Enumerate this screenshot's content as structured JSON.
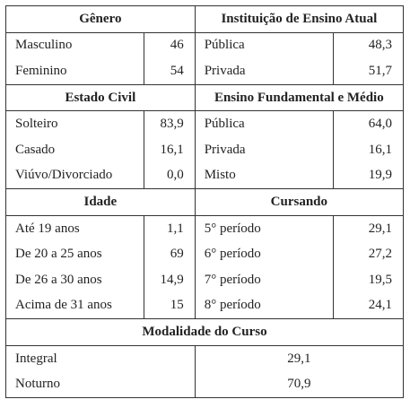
{
  "sections": {
    "genero": {
      "title": "Gênero",
      "rows": [
        {
          "label": "Masculino",
          "value": "46"
        },
        {
          "label": "Feminino",
          "value": "54"
        }
      ]
    },
    "instituicao": {
      "title": "Instituição de Ensino Atual",
      "rows": [
        {
          "label": "Pública",
          "value": "48,3"
        },
        {
          "label": "Privada",
          "value": "51,7"
        }
      ]
    },
    "estado_civil": {
      "title": "Estado Civil",
      "rows": [
        {
          "label": "Solteiro",
          "value": "83,9"
        },
        {
          "label": "Casado",
          "value": "16,1"
        },
        {
          "label": "Viúvo/Divorciado",
          "value": "0,0"
        }
      ]
    },
    "ensino_fundamental_medio": {
      "title": "Ensino Fundamental e Médio",
      "rows": [
        {
          "label": "Pública",
          "value": "64,0"
        },
        {
          "label": "Privada",
          "value": "16,1"
        },
        {
          "label": "Misto",
          "value": "19,9"
        }
      ]
    },
    "idade": {
      "title": "Idade",
      "rows": [
        {
          "label": "Até 19 anos",
          "value": "1,1"
        },
        {
          "label": "De 20 a 25 anos",
          "value": "69"
        },
        {
          "label": "De 26 a 30 anos",
          "value": "14,9"
        },
        {
          "label": "Acima de 31 anos",
          "value": "15"
        }
      ]
    },
    "cursando": {
      "title": "Cursando",
      "rows": [
        {
          "label": "5° período",
          "value": "29,1"
        },
        {
          "label": "6° período",
          "value": "27,2"
        },
        {
          "label": "7° período",
          "value": "19,5"
        },
        {
          "label": "8° período",
          "value": "24,1"
        }
      ]
    },
    "modalidade": {
      "title": "Modalidade do Curso",
      "rows": [
        {
          "label": "Integral",
          "value": "29,1"
        },
        {
          "label": "Noturno",
          "value": "70,9"
        }
      ]
    }
  }
}
